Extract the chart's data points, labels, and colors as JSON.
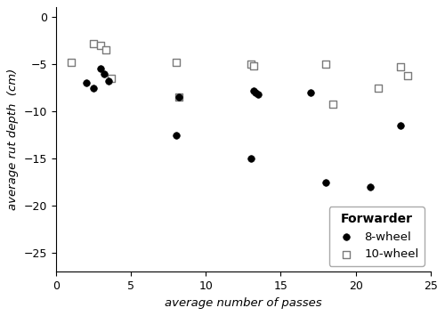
{
  "eight_wheel_x": [
    2.0,
    2.5,
    3.0,
    3.2,
    3.5,
    8.0,
    8.2,
    13.0,
    13.2,
    13.3,
    13.5,
    17.0,
    18.0,
    21.0,
    23.0
  ],
  "eight_wheel_y": [
    -7.0,
    -7.5,
    -5.5,
    -6.0,
    -6.8,
    -12.5,
    -8.5,
    -15.0,
    -7.8,
    -8.0,
    -8.2,
    -8.0,
    -17.5,
    -18.0,
    -11.5
  ],
  "ten_wheel_x": [
    1.0,
    2.5,
    3.0,
    3.3,
    3.7,
    8.0,
    8.2,
    13.0,
    13.2,
    18.0,
    18.5,
    21.5,
    23.0,
    23.5
  ],
  "ten_wheel_y": [
    -4.8,
    -2.8,
    -3.0,
    -3.5,
    -6.5,
    -4.8,
    -8.5,
    -5.0,
    -5.2,
    -5.0,
    -9.2,
    -7.5,
    -5.3,
    -6.2
  ],
  "xlabel": "average number of passes",
  "ylabel": "average rut depth  (cm)",
  "xlim": [
    0,
    25
  ],
  "ylim": [
    -27,
    1
  ],
  "yticks": [
    0,
    -5,
    -10,
    -15,
    -20,
    -25
  ],
  "xticks": [
    0,
    5,
    10,
    15,
    20,
    25
  ],
  "legend_title": "Forwarder",
  "legend_label_8": "8-wheel",
  "legend_label_10": "10-wheel",
  "background_color": "#ffffff",
  "marker_color_8": "#000000",
  "marker_color_10": "#ffffff",
  "marker_edge_color_10": "#7a7a7a"
}
